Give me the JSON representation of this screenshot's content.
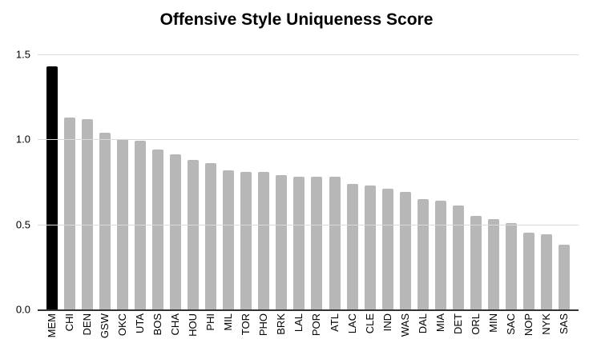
{
  "chart_data": {
    "type": "bar",
    "title": "Offensive Style Uniqueness Score",
    "xlabel": "",
    "ylabel": "",
    "categories": [
      "MEM",
      "CHI",
      "DEN",
      "GSW",
      "OKC",
      "UTA",
      "BOS",
      "CHA",
      "HOU",
      "PHI",
      "MIL",
      "TOR",
      "PHO",
      "BRK",
      "LAL",
      "POR",
      "ATL",
      "LAC",
      "CLE",
      "IND",
      "WAS",
      "DAL",
      "MIA",
      "DET",
      "ORL",
      "MIN",
      "SAC",
      "NOP",
      "NYK",
      "SAS"
    ],
    "values": [
      1.43,
      1.13,
      1.12,
      1.04,
      1.0,
      0.99,
      0.94,
      0.91,
      0.88,
      0.86,
      0.82,
      0.81,
      0.81,
      0.79,
      0.78,
      0.78,
      0.78,
      0.74,
      0.73,
      0.71,
      0.69,
      0.65,
      0.64,
      0.61,
      0.55,
      0.53,
      0.51,
      0.45,
      0.44,
      0.38
    ],
    "ylim": [
      0,
      1.5
    ],
    "yticks": [
      0,
      0.5,
      1.0,
      1.5
    ],
    "ytick_labels": [
      "0.0",
      "0.5",
      "1.0",
      "1.5"
    ],
    "grid": true,
    "legend": false,
    "bar_color_default": "#b7b7b7",
    "highlight_index": 0,
    "highlight_color": "#000000",
    "gridline_color": "#d9d9d9",
    "axis_color": "#333333",
    "background_color": "#ffffff",
    "text_color": "#000000"
  }
}
